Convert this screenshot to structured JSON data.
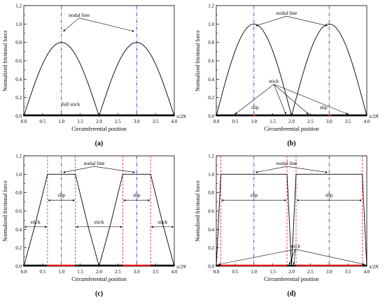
{
  "chart_data": [
    {
      "type": "line",
      "panel_label": "(a)",
      "xlabel": "Circumferential position",
      "ylabel": "Normalized frictional force",
      "x_unit": "π/2N",
      "xlim": [
        0,
        4
      ],
      "ylim": [
        0,
        1.2
      ],
      "xticks": [
        "0.0",
        "0.5",
        "1.0",
        "1.5",
        "2.0",
        "2.5",
        "3.0",
        "3.5",
        "4.0"
      ],
      "yticks": [
        "0.0",
        "0.2",
        "0.4",
        "0.6",
        "0.8",
        "1.0",
        "1.2"
      ],
      "grid": false,
      "series": [
        {
          "x": [
            0.0,
            0.25,
            0.5,
            0.75,
            1.0,
            1.25,
            1.5,
            1.75,
            2.0,
            2.25,
            2.5,
            2.75,
            3.0,
            3.25,
            3.5,
            3.75,
            4.0
          ],
          "y": [
            0.0,
            0.306,
            0.566,
            0.739,
            0.8,
            0.739,
            0.566,
            0.306,
            0.0,
            0.306,
            0.566,
            0.739,
            0.8,
            0.739,
            0.566,
            0.306,
            0.0
          ]
        }
      ],
      "nodal_lines": [
        1.0,
        3.0
      ],
      "slip_bounds": [],
      "marker_line": {
        "slip_ranges": []
      },
      "annotations": {
        "nodal": {
          "text": "nodal line",
          "x": 1.47,
          "y": 1.08,
          "arrows_to": [
            [
              1.05,
              0.92
            ],
            [
              2.93,
              0.92
            ]
          ]
        },
        "other": [
          {
            "text": "full stick",
            "x": 1.25,
            "y": 0.11
          }
        ]
      }
    },
    {
      "type": "line",
      "panel_label": "(b)",
      "xlabel": "Circumferential position",
      "ylabel": "Normalized frictional force",
      "x_unit": "π/2N",
      "xlim": [
        0,
        4
      ],
      "ylim": [
        0,
        1.2
      ],
      "xticks": [
        "0.0",
        "0.5",
        "1.0",
        "1.5",
        "2.0",
        "2.5",
        "3.0",
        "3.5",
        "4.0"
      ],
      "yticks": [
        "0.0",
        "0.2",
        "0.4",
        "0.6",
        "0.8",
        "1.0",
        "1.2"
      ],
      "grid": false,
      "series": [
        {
          "x": [
            0.0,
            0.25,
            0.5,
            0.75,
            1.0,
            1.25,
            1.5,
            1.75,
            2.0,
            2.25,
            2.5,
            2.75,
            3.0,
            3.25,
            3.5,
            3.75,
            4.0
          ],
          "y": [
            0.0,
            0.383,
            0.707,
            0.924,
            1.0,
            0.924,
            0.707,
            0.383,
            0.0,
            0.383,
            0.707,
            0.924,
            1.0,
            0.924,
            0.707,
            0.383,
            0.0
          ]
        }
      ],
      "nodal_lines": [
        1.0,
        3.0
      ],
      "slip_bounds": [],
      "marker_line": {
        "slip_ranges": [
          [
            0.97,
            1.03
          ],
          [
            2.97,
            3.03
          ]
        ]
      },
      "annotations": {
        "nodal": {
          "text": "nodal line",
          "x": 1.87,
          "y": 1.1,
          "arrows_to": [
            [
              1.05,
              0.98
            ],
            [
              2.95,
              0.98
            ]
          ]
        },
        "slip": [
          {
            "text": "slip",
            "x": 1.03,
            "y": 0.06
          },
          {
            "text": "slip",
            "x": 2.85,
            "y": 0.06
          }
        ],
        "stick": {
          "text": "stick",
          "x": 1.53,
          "y": 0.36,
          "arrows_to": [
            [
              0.5,
              0.02
            ],
            [
              1.85,
              0.02
            ],
            [
              2.45,
              0.02
            ],
            [
              3.5,
              0.02
            ]
          ]
        }
      }
    },
    {
      "type": "line",
      "panel_label": "(c)",
      "xlabel": "Circumferential position",
      "ylabel": "Normalized frictional force",
      "x_unit": "π/2N",
      "xlim": [
        0,
        4
      ],
      "ylim": [
        0,
        1.2
      ],
      "xticks": [
        "0.0",
        "0.5",
        "1.0",
        "1.5",
        "2.0",
        "2.5",
        "3.0",
        "3.5",
        "4.0"
      ],
      "yticks": [
        "0.0",
        "0.2",
        "0.4",
        "0.6",
        "0.8",
        "1.0",
        "1.2"
      ],
      "grid": false,
      "series": [
        {
          "x": [
            0.0,
            0.3,
            0.63,
            1.0,
            1.37,
            1.7,
            2.0,
            2.3,
            2.63,
            3.0,
            3.37,
            3.7,
            4.0
          ],
          "y": [
            0.0,
            0.45,
            1.0,
            1.0,
            1.0,
            0.45,
            0.0,
            0.45,
            1.0,
            1.0,
            1.0,
            0.45,
            0.0
          ]
        }
      ],
      "nodal_lines": [
        1.0,
        3.0
      ],
      "slip_bounds": [
        0.63,
        1.37,
        2.63,
        3.37
      ],
      "marker_line": {
        "slip_ranges": [
          [
            0.63,
            1.37
          ],
          [
            2.63,
            3.37
          ]
        ]
      },
      "annotations": {
        "nodal": {
          "text": "nodal line",
          "x": 1.87,
          "y": 1.1,
          "arrows_to": [
            [
              1.05,
              1.02
            ],
            [
              2.95,
              1.02
            ]
          ]
        },
        "slip": [
          {
            "text": "slip",
            "x": 1.0,
            "y": 0.74,
            "span": [
              0.63,
              1.37
            ]
          },
          {
            "text": "slip",
            "x": 3.0,
            "y": 0.74,
            "span": [
              2.63,
              3.37
            ]
          }
        ],
        "stick": [
          {
            "text": "stick",
            "x": 0.31,
            "y": 0.45,
            "span": [
              0.0,
              0.63
            ]
          },
          {
            "text": "stick",
            "x": 2.0,
            "y": 0.45,
            "span": [
              1.37,
              2.63
            ]
          },
          {
            "text": "stick",
            "x": 3.69,
            "y": 0.45,
            "span": [
              3.37,
              4.0
            ]
          }
        ]
      }
    },
    {
      "type": "line",
      "panel_label": "(d)",
      "xlabel": "Circumferential position",
      "ylabel": "Normalized frictional force",
      "x_unit": "π/2N",
      "xlim": [
        0,
        4
      ],
      "ylim": [
        0,
        1.2
      ],
      "xticks": [
        "0.0",
        "0.5",
        "1.0",
        "1.5",
        "2.0",
        "2.5",
        "3.0",
        "3.5",
        "4.0"
      ],
      "yticks": [
        "0.0",
        "0.2",
        "0.4",
        "0.6",
        "0.8",
        "1.0",
        "1.2"
      ],
      "grid": false,
      "series": [
        {
          "x": [
            0.0,
            0.12,
            1.88,
            2.0,
            2.12,
            3.88,
            4.0
          ],
          "y": [
            0.0,
            1.0,
            1.0,
            0.0,
            1.0,
            1.0,
            0.0
          ]
        }
      ],
      "nodal_lines": [
        1.0,
        3.0
      ],
      "slip_bounds": [
        0.12,
        1.88,
        2.12,
        3.88
      ],
      "marker_line": {
        "slip_ranges": [
          [
            0.12,
            1.88
          ],
          [
            2.12,
            3.88
          ]
        ]
      },
      "annotations": {
        "nodal": {
          "text": "nodal line",
          "x": 1.87,
          "y": 1.1,
          "arrows_to": [
            [
              1.05,
              1.02
            ],
            [
              2.95,
              1.02
            ]
          ]
        },
        "slip": [
          {
            "text": "slip",
            "x": 1.0,
            "y": 0.74,
            "span": [
              0.12,
              1.88
            ]
          },
          {
            "text": "slip",
            "x": 3.0,
            "y": 0.74,
            "span": [
              2.12,
              3.88
            ]
          }
        ],
        "stick": {
          "text": "stick",
          "x": 2.1,
          "y": 0.2,
          "arrows_to": [
            [
              0.06,
              0.02
            ],
            [
              1.94,
              0.02
            ],
            [
              2.06,
              0.02
            ],
            [
              3.94,
              0.02
            ]
          ]
        }
      }
    }
  ]
}
